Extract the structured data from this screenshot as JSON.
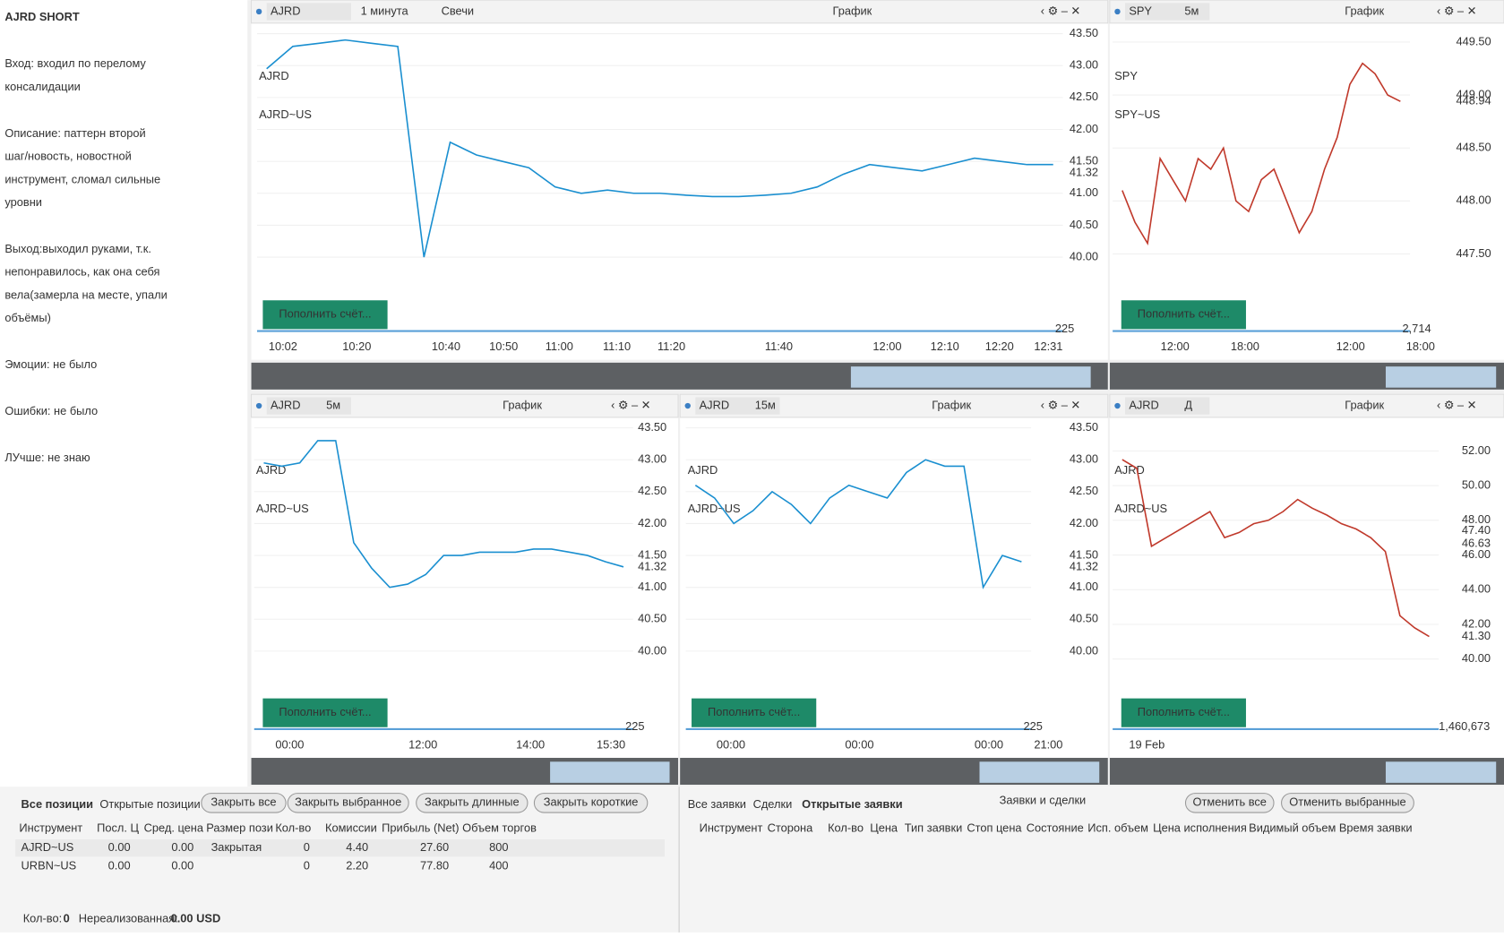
{
  "notes": {
    "title": "AJRD SHORT",
    "paragraphs": [
      [
        "Вход: входил по перелому",
        "консалидации"
      ],
      [
        "Описание: паттерн второй",
        "шаг/новость, новостной",
        "инструмент, сломал сильные",
        "уровни"
      ],
      [
        "Выход:выходил руками, т.к.",
        "непонравилось, как она себя",
        "вела(замерла на месте, упали",
        "объёмы)"
      ],
      [
        "Эмоции: не было"
      ],
      [
        "Ошибки: не было"
      ],
      [
        "ЛУчше: не знаю"
      ]
    ]
  },
  "panels": [
    {
      "symbol": "AJRD",
      "interval": "1 минута",
      "style": "Свечи",
      "header": "График",
      "watermark": "AJRD",
      "watermark_sub": "AJRD~US",
      "ylim": [
        39.67,
        43.65
      ],
      "yticks": [
        {
          "value": 43.5,
          "label": "43.50"
        },
        {
          "value": 43,
          "label": "43.00"
        },
        {
          "value": 42.5,
          "label": "42.50"
        },
        {
          "value": 42,
          "label": "42.00"
        },
        {
          "value": 41.5,
          "label": "41.50"
        },
        {
          "value": 41,
          "label": "41.00"
        },
        {
          "value": 40.5,
          "label": "40.50"
        },
        {
          "value": 40,
          "label": "40.00"
        }
      ],
      "last": {
        "value": 41.32,
        "label": "41.32"
      },
      "xticks": [
        "10:02",
        "10:20",
        "10:40",
        "10:50",
        "11:00",
        "11:10",
        "11:20",
        "11:40",
        "12:00",
        "12:10",
        "12:20",
        "12:31"
      ],
      "volume_label": "225",
      "button": "Пополнить счёт...",
      "closes": [
        42.95,
        43.3,
        43.35,
        43.4,
        43.35,
        43.3,
        40.0,
        41.8,
        41.6,
        41.5,
        41.4,
        41.1,
        41.0,
        41.05,
        41.0,
        41.0,
        40.97,
        40.95,
        40.95,
        40.97,
        41.0,
        41.1,
        41.3,
        41.45,
        41.4,
        41.35,
        41.45,
        41.55,
        41.5,
        41.45,
        41.45
      ]
    },
    {
      "symbol": "SPY",
      "interval": "5м",
      "header": "График",
      "watermark": "SPY",
      "watermark_sub": "SPY~US",
      "ylim": [
        447.27,
        449.67
      ],
      "yticks": [
        {
          "value": 449.5,
          "label": "449.50"
        },
        {
          "value": 449,
          "label": "449.00"
        },
        {
          "value": 448.5,
          "label": "448.50"
        },
        {
          "value": 448,
          "label": "448.00"
        },
        {
          "value": 447.5,
          "label": "447.50"
        }
      ],
      "last": {
        "value": 448.94,
        "label": "448.94"
      },
      "xticks": [
        "12:00",
        "18:00",
        "12:00",
        "18:00"
      ],
      "volume_label": "2,714",
      "button": "Пополнить счёт...",
      "closes": [
        448.1,
        447.8,
        447.6,
        448.4,
        448.2,
        448.0,
        448.4,
        448.3,
        448.5,
        448.0,
        447.9,
        448.2,
        448.3,
        448.0,
        447.7,
        447.9,
        448.3,
        448.6,
        449.1,
        449.3,
        449.2,
        449.0,
        448.94
      ]
    },
    {
      "symbol": "AJRD",
      "interval": "5м",
      "header": "График",
      "watermark": "AJRD",
      "watermark_sub": "AJRD~US",
      "ylim": [
        39.68,
        43.65
      ],
      "yticks": [
        {
          "value": 43.5,
          "label": "43.50"
        },
        {
          "value": 43,
          "label": "43.00"
        },
        {
          "value": 42.5,
          "label": "42.50"
        },
        {
          "value": 42,
          "label": "42.00"
        },
        {
          "value": 41.5,
          "label": "41.50"
        },
        {
          "value": 41,
          "label": "41.00"
        },
        {
          "value": 40.5,
          "label": "40.50"
        },
        {
          "value": 40,
          "label": "40.00"
        }
      ],
      "last": {
        "value": 41.32,
        "label": "41.32"
      },
      "xticks": [
        "00:00",
        "12:00",
        "14:00",
        "15:30"
      ],
      "volume_label": "225",
      "button": "Пополнить счёт...",
      "closes": [
        42.95,
        42.9,
        42.95,
        43.3,
        43.3,
        41.7,
        41.3,
        41.0,
        41.05,
        41.2,
        41.5,
        41.5,
        41.55,
        41.55,
        41.55,
        41.6,
        41.6,
        41.55,
        41.5,
        41.4,
        41.32
      ]
    },
    {
      "symbol": "AJRD",
      "interval": "15м",
      "header": "График",
      "watermark": "AJRD",
      "watermark_sub": "AJRD~US",
      "ylim": [
        39.68,
        43.65
      ],
      "yticks": [
        {
          "value": 43.5,
          "label": "43.50"
        },
        {
          "value": 43,
          "label": "43.00"
        },
        {
          "value": 42.5,
          "label": "42.50"
        },
        {
          "value": 42,
          "label": "42.00"
        },
        {
          "value": 41.5,
          "label": "41.50"
        },
        {
          "value": 41,
          "label": "41.00"
        },
        {
          "value": 40.5,
          "label": "40.50"
        },
        {
          "value": 40,
          "label": "40.00"
        }
      ],
      "last": {
        "value": 41.32,
        "label": "41.32"
      },
      "xticks": [
        "00:00",
        "00:00",
        "00:00",
        "21:00"
      ],
      "volume_label": "225",
      "button": "Пополнить счёт...",
      "closes": [
        42.6,
        42.4,
        42.0,
        42.2,
        42.5,
        42.3,
        42.0,
        42.4,
        42.6,
        42.5,
        42.4,
        42.8,
        43.0,
        42.9,
        42.9,
        41.0,
        41.5,
        41.4
      ]
    },
    {
      "symbol": "AJRD",
      "interval": "Д",
      "header": "График",
      "watermark": "AJRD",
      "watermark_sub": "AJRD~US",
      "ylim": [
        39.28,
        53.88
      ],
      "yticks": [
        {
          "value": 52,
          "label": "52.00"
        },
        {
          "value": 50,
          "label": "50.00"
        },
        {
          "value": 48,
          "label": "48.00"
        },
        {
          "value": 46,
          "label": "46.00"
        },
        {
          "value": 44,
          "label": "44.00"
        },
        {
          "value": 42,
          "label": "42.00"
        },
        {
          "value": 40,
          "label": "40.00"
        }
      ],
      "last": {
        "value": 41.3,
        "label": "41.30"
      },
      "xticks": [
        "19 Feb"
      ],
      "volume_label": "1,460,673",
      "button": "Пополнить счёт...",
      "indicator_labels": [
        {
          "value": 47.4,
          "label": "47.40",
          "color": "#8e44c8"
        },
        {
          "value": 46.63,
          "label": "46.63",
          "color": "#2cd3e0"
        }
      ],
      "closes": [
        51.5,
        51.0,
        46.5,
        47.0,
        47.5,
        48.0,
        48.5,
        47.0,
        47.3,
        47.8,
        48.0,
        48.5,
        49.2,
        48.7,
        48.3,
        47.8,
        47.5,
        47.0,
        46.2,
        42.5,
        41.8,
        41.3
      ]
    }
  ],
  "positions": {
    "tabs": [
      "Все позиции",
      "Открытые позиции"
    ],
    "buttons": [
      "Закрыть все",
      "Закрыть выбранное",
      "Закрыть длинные",
      "Закрыть короткие"
    ],
    "columns": [
      "Инструмент",
      "Посл. Ц",
      "Сред. цена",
      "Размер пози",
      "Кол-во",
      "Комиссии",
      "Прибыль (Net)",
      "Объем торгов"
    ],
    "rows": [
      [
        "AJRD~US",
        "0.00",
        "0.00",
        "Закрытая",
        "0",
        "4.40",
        "27.60",
        "800"
      ],
      [
        "URBN~US",
        "0.00",
        "0.00",
        null,
        "0",
        "2.20",
        "77.80",
        "400"
      ]
    ],
    "footer": {
      "count_label": "Кол-во:",
      "count": "0",
      "unrealized_label": "Нереализованная:",
      "unrealized": "0.00 USD"
    }
  },
  "orders": {
    "tabs": [
      "Все заявки",
      "Сделки",
      "Открытые заявки"
    ],
    "title": "Заявки и сделки",
    "buttons": [
      "Отменить все",
      "Отменить выбранные"
    ],
    "columns": [
      "Инструмент",
      "Сторона",
      "Кол-во",
      "Цена",
      "Тип заявки",
      "Стоп цена",
      "Состояние",
      "Исп. объем",
      "Цена исполнения",
      "Видимый объем",
      "Время заявки"
    ]
  }
}
